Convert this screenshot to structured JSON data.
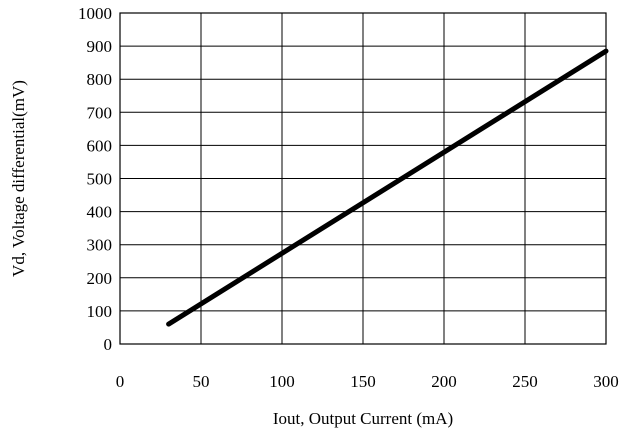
{
  "chart_data": {
    "type": "line",
    "xlabel": "Iout, Output Current (mA)",
    "ylabel": "Vd, Voltage differential(mV)",
    "xlim": [
      0,
      300
    ],
    "ylim": [
      0,
      1000
    ],
    "xticks": [
      "0",
      "50",
      "100",
      "150",
      "200",
      "250",
      "300"
    ],
    "yticks": [
      "0",
      "100",
      "200",
      "300",
      "400",
      "500",
      "600",
      "700",
      "800",
      "900",
      "1000"
    ],
    "grid": true,
    "series": [
      {
        "x": [
          30,
          300
        ],
        "y": [
          60,
          885
        ]
      }
    ],
    "colors": {
      "line": "#000000",
      "grid": "#000000",
      "background": "#ffffff"
    }
  }
}
